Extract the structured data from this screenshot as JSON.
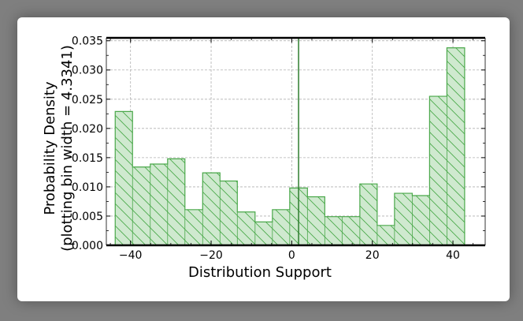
{
  "chart_data": {
    "type": "histogram",
    "xlabel": "Distribution Support",
    "ylabel_line1": "Probability Density",
    "ylabel_line2": "(plotting bin width = 4.3341)",
    "xlim": [
      -46,
      48
    ],
    "ylim": [
      0,
      0.0355
    ],
    "xticks": [
      -40,
      -20,
      0,
      20,
      40
    ],
    "xtick_labels": [
      "−40",
      "−20",
      "0",
      "20",
      "40"
    ],
    "yticks": [
      0.0,
      0.005,
      0.01,
      0.015,
      0.02,
      0.025,
      0.03,
      0.035
    ],
    "ytick_labels": [
      "0.000",
      "0.005",
      "0.010",
      "0.015",
      "0.020",
      "0.025",
      "0.030",
      "0.035"
    ],
    "grid": true,
    "bin_width": 4.3341,
    "bin_edges": [
      -43.8,
      -39.5,
      -35.1,
      -30.8,
      -26.5,
      -22.1,
      -17.8,
      -13.5,
      -9.1,
      -4.8,
      -0.5,
      3.9,
      8.2,
      12.5,
      16.9,
      21.2,
      25.5,
      29.9,
      34.2,
      38.5,
      42.9
    ],
    "values": [
      0.0229,
      0.0134,
      0.0139,
      0.0148,
      0.0061,
      0.0124,
      0.011,
      0.0057,
      0.004,
      0.0061,
      0.0098,
      0.0083,
      0.0049,
      0.0049,
      0.0105,
      0.0034,
      0.0089,
      0.0085,
      0.0255,
      0.0338
    ],
    "vline_x": 1.7,
    "fill_color": "#cfe9cf",
    "edge_color": "#4aa84a",
    "hatch_color": "#4aa84a",
    "vline_color": "#2e7d2e"
  }
}
